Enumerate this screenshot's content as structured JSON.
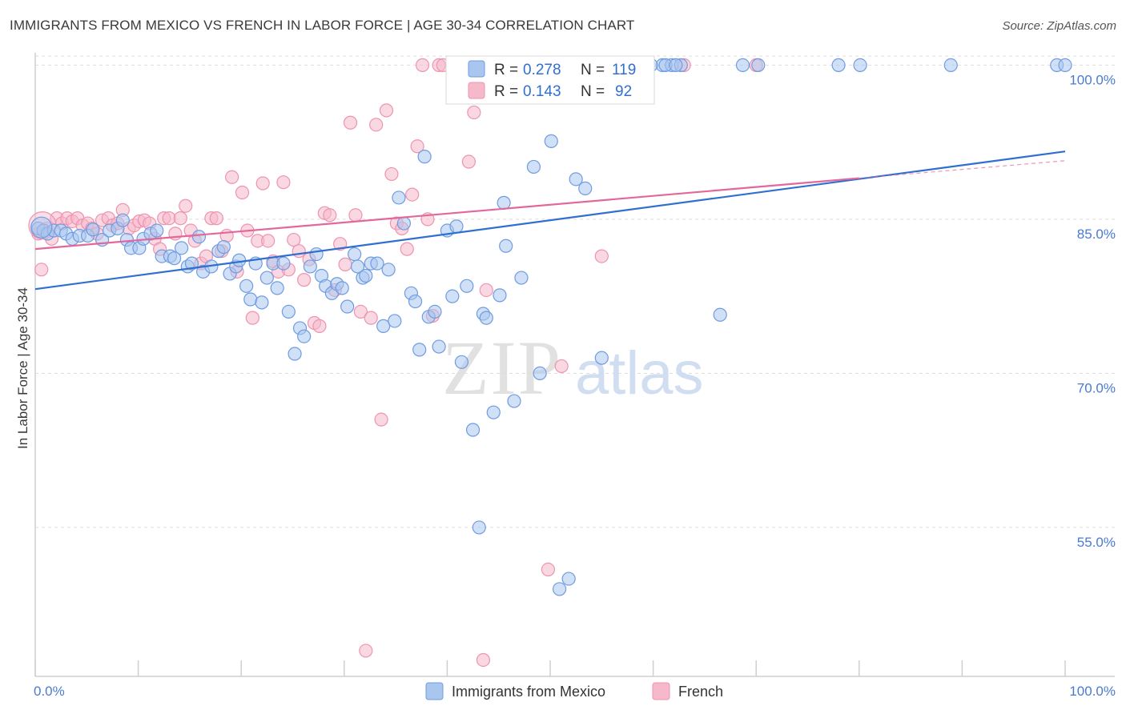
{
  "title": "IMMIGRANTS FROM MEXICO VS FRENCH IN LABOR FORCE | AGE 30-34 CORRELATION CHART",
  "source": "Source: ZipAtlas.com",
  "watermark": {
    "zip": "ZIP",
    "atlas": "atlas"
  },
  "colors": {
    "blue_fill": "#a9c6ee",
    "blue_stroke": "#6f9be0",
    "blue_line": "#2f6fd0",
    "pink_fill": "#f6b8cb",
    "pink_stroke": "#ee93b0",
    "pink_line": "#e2689a",
    "grid": "#dddddd",
    "axis_text": "#4a7bd0"
  },
  "legend": {
    "r_label": "R =",
    "n_label": "N =",
    "entries": [
      {
        "r": "0.278",
        "n": "119"
      },
      {
        "r": "0.143",
        "n": "92"
      }
    ]
  },
  "chart_data": {
    "type": "scatter",
    "title": "IMMIGRANTS FROM MEXICO VS FRENCH IN LABOR FORCE | AGE 30-34 CORRELATION CHART",
    "xlabel": "",
    "ylabel": "In Labor Force | Age 30-34",
    "xlim": [
      0,
      100
    ],
    "ylim": [
      40.5,
      101.2
    ],
    "x_tick_labels": [
      "0.0%",
      "100.0%"
    ],
    "y_ticks": [
      55,
      70,
      85,
      100
    ],
    "y_tick_labels": [
      "55.0%",
      "70.0%",
      "85.0%",
      "100.0%"
    ],
    "grid": "horizontal dashed",
    "legend_position": "top-center",
    "series": [
      {
        "name": "Immigrants from Mexico",
        "color": "#a9c6ee",
        "trend": {
          "x": [
            0,
            100
          ],
          "y": [
            78.2,
            91.6
          ]
        },
        "points": [
          [
            0.3,
            84.1
          ],
          [
            0.8,
            83.9
          ],
          [
            1.2,
            83.6
          ],
          [
            1.8,
            83.9
          ],
          [
            2.5,
            83.9
          ],
          [
            3.0,
            83.6
          ],
          [
            3.6,
            83.1
          ],
          [
            4.3,
            83.4
          ],
          [
            5.1,
            83.4
          ],
          [
            5.6,
            84.0
          ],
          [
            6.5,
            83.0
          ],
          [
            7.2,
            83.9
          ],
          [
            8.0,
            84.1
          ],
          [
            8.5,
            84.9
          ],
          [
            8.9,
            83.0
          ],
          [
            9.3,
            82.2
          ],
          [
            10.1,
            82.2
          ],
          [
            10.5,
            83.1
          ],
          [
            11.2,
            83.6
          ],
          [
            11.8,
            83.9
          ],
          [
            12.3,
            81.4
          ],
          [
            13.1,
            81.4
          ],
          [
            13.5,
            81.2
          ],
          [
            14.2,
            82.2
          ],
          [
            14.8,
            80.4
          ],
          [
            15.2,
            80.7
          ],
          [
            15.9,
            83.3
          ],
          [
            16.3,
            79.9
          ],
          [
            17.1,
            80.4
          ],
          [
            17.8,
            81.9
          ],
          [
            18.3,
            82.3
          ],
          [
            18.9,
            79.7
          ],
          [
            19.5,
            80.4
          ],
          [
            19.8,
            81.0
          ],
          [
            20.5,
            78.5
          ],
          [
            20.9,
            77.2
          ],
          [
            21.4,
            80.7
          ],
          [
            22.0,
            76.9
          ],
          [
            22.5,
            79.3
          ],
          [
            23.1,
            80.7
          ],
          [
            23.5,
            78.3
          ],
          [
            24.1,
            80.7
          ],
          [
            24.6,
            76.0
          ],
          [
            25.2,
            71.9
          ],
          [
            25.7,
            74.4
          ],
          [
            26.1,
            73.6
          ],
          [
            26.7,
            80.4
          ],
          [
            27.3,
            81.6
          ],
          [
            27.8,
            79.5
          ],
          [
            28.2,
            78.5
          ],
          [
            28.8,
            77.8
          ],
          [
            29.3,
            78.7
          ],
          [
            29.8,
            78.3
          ],
          [
            30.3,
            76.5
          ],
          [
            31.0,
            81.6
          ],
          [
            31.3,
            80.4
          ],
          [
            31.8,
            79.3
          ],
          [
            32.1,
            79.5
          ],
          [
            32.6,
            80.7
          ],
          [
            33.2,
            80.7
          ],
          [
            33.8,
            74.6
          ],
          [
            34.3,
            80.1
          ],
          [
            34.9,
            75.1
          ],
          [
            35.3,
            87.1
          ],
          [
            35.8,
            84.6
          ],
          [
            36.5,
            77.8
          ],
          [
            36.9,
            77.0
          ],
          [
            37.3,
            72.3
          ],
          [
            37.8,
            91.1
          ],
          [
            38.2,
            75.5
          ],
          [
            38.8,
            76.0
          ],
          [
            39.2,
            72.6
          ],
          [
            40.0,
            83.9
          ],
          [
            40.5,
            77.5
          ],
          [
            40.9,
            84.3
          ],
          [
            41.4,
            71.1
          ],
          [
            41.9,
            78.5
          ],
          [
            42.5,
            64.5
          ],
          [
            43.1,
            55.0
          ],
          [
            43.5,
            75.8
          ],
          [
            43.8,
            75.4
          ],
          [
            44.5,
            66.2
          ],
          [
            45.1,
            77.6
          ],
          [
            45.5,
            86.6
          ],
          [
            45.7,
            82.4
          ],
          [
            46.5,
            67.3
          ],
          [
            47.2,
            79.3
          ],
          [
            48.4,
            90.1
          ],
          [
            49.0,
            70.0
          ],
          [
            50.1,
            92.6
          ],
          [
            50.9,
            49.0
          ],
          [
            51.8,
            50.0
          ],
          [
            52.5,
            88.9
          ],
          [
            53.4,
            88.0
          ],
          [
            55.0,
            71.5
          ],
          [
            56.0,
            100.0
          ],
          [
            58.5,
            100.0
          ],
          [
            59.0,
            100.0
          ],
          [
            60.9,
            100.0
          ],
          [
            61.8,
            100.0
          ],
          [
            62.7,
            100.0
          ],
          [
            66.5,
            75.7
          ],
          [
            68.7,
            100.0
          ],
          [
            70.2,
            100.0
          ],
          [
            78.0,
            100.0
          ],
          [
            80.1,
            100.0
          ],
          [
            99.2,
            100.0
          ],
          [
            44.0,
            100.0
          ],
          [
            45.5,
            100.0
          ],
          [
            47.0,
            100.0
          ],
          [
            48.5,
            100.0
          ],
          [
            51.5,
            100.0
          ],
          [
            53.0,
            100.0
          ],
          [
            54.5,
            100.0
          ],
          [
            56.5,
            100.0
          ],
          [
            57.5,
            100.0
          ],
          [
            59.8,
            100.0
          ],
          [
            61.2,
            100.0
          ],
          [
            62.2,
            100.0
          ],
          [
            88.9,
            100.0
          ],
          [
            100.0,
            100.0
          ]
        ]
      },
      {
        "name": "French",
        "color": "#f6b8cb",
        "trend": {
          "x": [
            0,
            80
          ],
          "y": [
            82.1,
            89.0
          ]
        },
        "trend_dashed": {
          "x": [
            80,
            100
          ],
          "y": [
            89.0,
            90.7
          ]
        },
        "points": [
          [
            0.3,
            83.6
          ],
          [
            0.6,
            80.1
          ],
          [
            1.1,
            84.1
          ],
          [
            1.6,
            83.1
          ],
          [
            2.1,
            85.1
          ],
          [
            2.6,
            84.6
          ],
          [
            3.1,
            85.1
          ],
          [
            3.6,
            84.8
          ],
          [
            4.1,
            85.1
          ],
          [
            4.6,
            84.4
          ],
          [
            5.1,
            84.6
          ],
          [
            5.5,
            84.1
          ],
          [
            6.0,
            83.6
          ],
          [
            6.5,
            84.9
          ],
          [
            7.1,
            85.1
          ],
          [
            7.5,
            84.4
          ],
          [
            8.0,
            84.6
          ],
          [
            8.5,
            85.9
          ],
          [
            9.1,
            84.1
          ],
          [
            9.6,
            84.4
          ],
          [
            10.1,
            84.8
          ],
          [
            10.6,
            84.9
          ],
          [
            11.1,
            84.6
          ],
          [
            11.6,
            83.1
          ],
          [
            12.1,
            82.1
          ],
          [
            12.5,
            85.1
          ],
          [
            13.0,
            85.1
          ],
          [
            13.6,
            83.6
          ],
          [
            14.1,
            85.1
          ],
          [
            14.6,
            86.3
          ],
          [
            15.1,
            83.9
          ],
          [
            15.5,
            82.9
          ],
          [
            16.1,
            80.7
          ],
          [
            16.6,
            81.4
          ],
          [
            17.1,
            85.1
          ],
          [
            17.6,
            85.1
          ],
          [
            18.1,
            81.9
          ],
          [
            18.6,
            83.4
          ],
          [
            19.1,
            89.1
          ],
          [
            19.6,
            79.9
          ],
          [
            20.1,
            87.6
          ],
          [
            20.6,
            83.9
          ],
          [
            21.1,
            75.4
          ],
          [
            21.6,
            82.9
          ],
          [
            22.1,
            88.5
          ],
          [
            22.6,
            82.9
          ],
          [
            23.1,
            80.9
          ],
          [
            23.6,
            79.9
          ],
          [
            24.1,
            88.6
          ],
          [
            24.6,
            80.1
          ],
          [
            25.1,
            83.0
          ],
          [
            25.6,
            81.9
          ],
          [
            26.1,
            79.1
          ],
          [
            26.6,
            81.1
          ],
          [
            27.1,
            74.9
          ],
          [
            27.6,
            74.6
          ],
          [
            28.1,
            85.6
          ],
          [
            28.6,
            85.4
          ],
          [
            29.1,
            78.1
          ],
          [
            29.6,
            82.6
          ],
          [
            30.1,
            80.6
          ],
          [
            30.6,
            94.4
          ],
          [
            31.1,
            85.4
          ],
          [
            31.6,
            76.0
          ],
          [
            32.1,
            43.0
          ],
          [
            32.6,
            75.4
          ],
          [
            33.1,
            94.2
          ],
          [
            33.6,
            65.5
          ],
          [
            34.1,
            95.6
          ],
          [
            34.6,
            89.4
          ],
          [
            35.1,
            84.6
          ],
          [
            35.6,
            84.1
          ],
          [
            36.1,
            82.1
          ],
          [
            36.6,
            87.4
          ],
          [
            37.1,
            92.1
          ],
          [
            37.6,
            100.0
          ],
          [
            38.1,
            85.0
          ],
          [
            38.6,
            75.6
          ],
          [
            39.2,
            100.0
          ],
          [
            39.6,
            100.0
          ],
          [
            40.6,
            100.0
          ],
          [
            41.1,
            100.0
          ],
          [
            42.1,
            90.6
          ],
          [
            42.6,
            95.4
          ],
          [
            43.1,
            100.0
          ],
          [
            43.5,
            42.1
          ],
          [
            43.8,
            78.1
          ],
          [
            51.1,
            70.7
          ],
          [
            49.8,
            50.9
          ],
          [
            55.0,
            81.4
          ],
          [
            63.0,
            100.0
          ],
          [
            70.0,
            100.0
          ]
        ]
      }
    ]
  },
  "bottom_legend": [
    "Immigrants from Mexico",
    "French"
  ]
}
